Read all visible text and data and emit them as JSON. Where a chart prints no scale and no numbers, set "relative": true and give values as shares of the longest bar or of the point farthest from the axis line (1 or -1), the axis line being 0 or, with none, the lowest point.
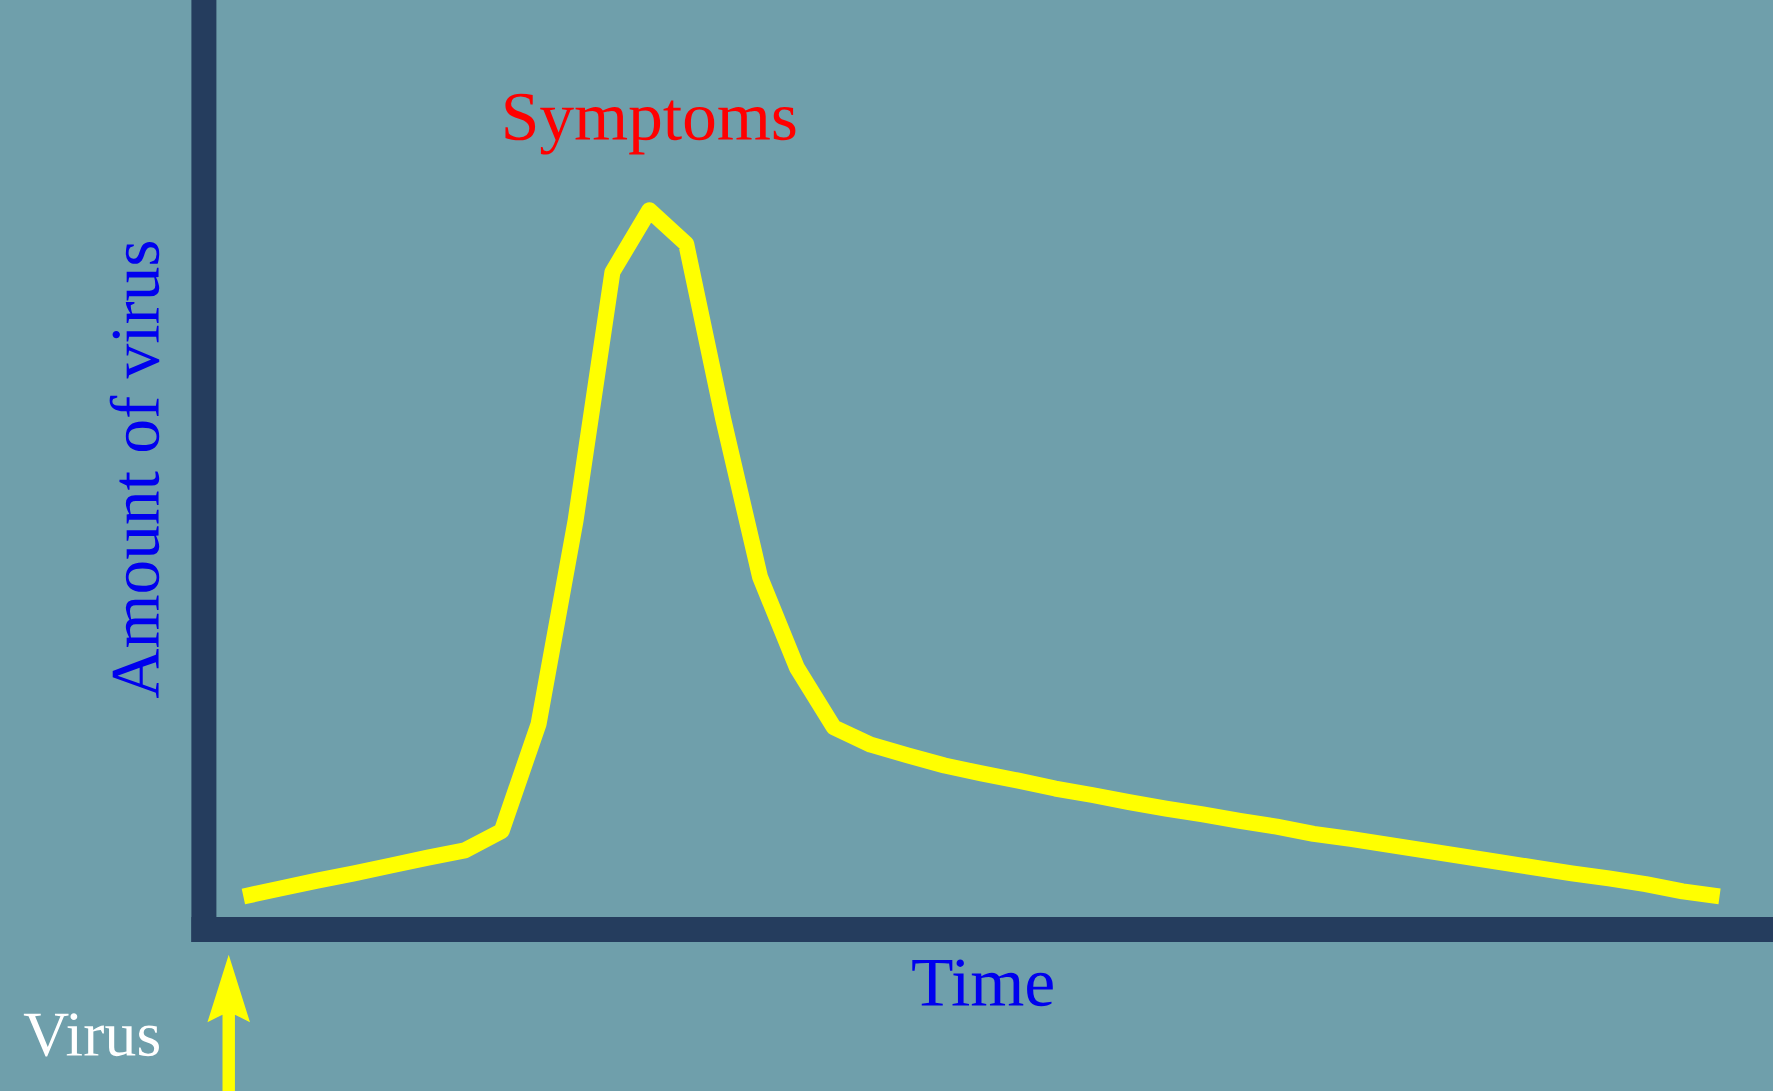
{
  "chart_data": {
    "type": "line",
    "relative": true,
    "xlabel": "Time",
    "ylabel": "Amount of virus",
    "tick_labels": false,
    "categories": [
      null,
      null,
      null,
      null,
      null,
      null,
      null,
      null,
      null,
      null,
      null,
      null,
      null,
      null,
      null,
      null,
      null,
      null,
      null,
      null,
      null,
      null,
      null,
      null,
      null,
      null,
      null,
      null,
      null,
      null,
      null,
      null,
      null,
      null,
      null,
      null,
      null,
      null,
      null,
      null,
      null
    ],
    "series": [
      {
        "color": "#ffff00",
        "values": [
          0.046,
          0.057,
          0.068,
          0.078,
          0.089,
          0.1,
          0.11,
          0.137,
          0.286,
          0.568,
          0.914,
          1.0,
          0.953,
          0.71,
          0.49,
          0.364,
          0.281,
          0.257,
          0.242,
          0.228,
          0.217,
          0.207,
          0.196,
          0.187,
          0.177,
          0.168,
          0.16,
          0.151,
          0.143,
          0.133,
          0.126,
          0.118,
          0.11,
          0.102,
          0.094,
          0.086,
          0.078,
          0.071,
          0.063,
          0.053,
          0.046
        ]
      }
    ],
    "annotations": [
      "Symptoms",
      "Virus"
    ]
  }
}
